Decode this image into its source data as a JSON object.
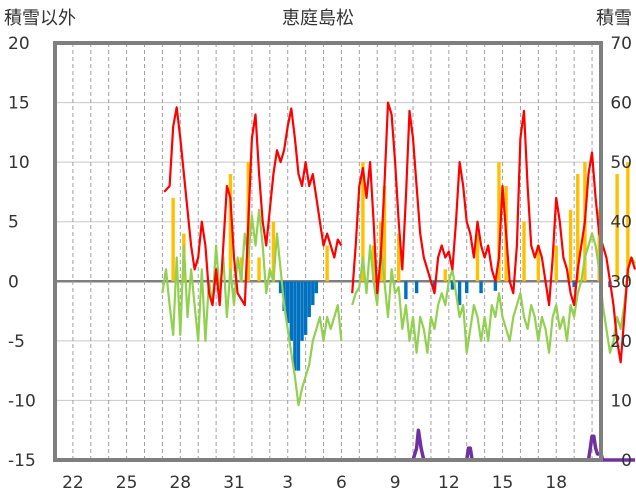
{
  "chart_data": {
    "type": "line",
    "title": "恵庭島松",
    "left_axis_label": "積雪以外",
    "right_axis_label": "積雪",
    "ylim_left": [
      -15,
      20
    ],
    "ylim_right": [
      0,
      70
    ],
    "yticks_left": [
      "20",
      "15",
      "10",
      "5",
      "0",
      "-5",
      "-10",
      "-15"
    ],
    "yticks_right": [
      "70",
      "60",
      "50",
      "40",
      "30",
      "20",
      "10",
      "0"
    ],
    "x_tick_labels": [
      "22",
      "25",
      "28",
      "31",
      "3",
      "6",
      "9",
      "12",
      "15",
      "18"
    ],
    "x_range_days": [
      0,
      30.5
    ],
    "grid": {
      "vertical_dashed": true,
      "horizontal_solid": true
    },
    "colors": {
      "temperature": "#ff0000",
      "precipitation": "#ffc000",
      "snow_change": "#0070c0",
      "other": "#92d050",
      "snow_depth": "#7030a0",
      "frame": "#7f7f7f",
      "grid": "#c8c8c8"
    },
    "temperature_series": [
      [
        6.1,
        7.5
      ],
      [
        6.4,
        8.0
      ],
      [
        6.6,
        13.0
      ],
      [
        6.8,
        14.6
      ],
      [
        7.0,
        12.0
      ],
      [
        7.2,
        9.0
      ],
      [
        7.4,
        6.0
      ],
      [
        7.6,
        3.0
      ],
      [
        7.8,
        1.0
      ],
      [
        8.0,
        2.0
      ],
      [
        8.2,
        5.0
      ],
      [
        8.4,
        3.0
      ],
      [
        8.6,
        -1.0
      ],
      [
        8.8,
        -2.0
      ],
      [
        9.0,
        1.0
      ],
      [
        9.2,
        -2.0
      ],
      [
        9.4,
        3.0
      ],
      [
        9.6,
        8.0
      ],
      [
        9.8,
        7.0
      ],
      [
        10.0,
        2.0
      ],
      [
        10.2,
        -1.0
      ],
      [
        10.6,
        -2.0
      ],
      [
        11.0,
        12.0
      ],
      [
        11.2,
        14.0
      ],
      [
        11.4,
        9.0
      ],
      [
        11.6,
        5.0
      ],
      [
        11.8,
        3.0
      ],
      [
        12.0,
        6.0
      ],
      [
        12.2,
        9.0
      ],
      [
        12.4,
        11.0
      ],
      [
        12.6,
        10.0
      ],
      [
        12.8,
        11.0
      ],
      [
        13.0,
        13.0
      ],
      [
        13.2,
        14.5
      ],
      [
        13.4,
        12.0
      ],
      [
        13.6,
        9.0
      ],
      [
        13.8,
        8.0
      ],
      [
        14.0,
        10.0
      ],
      [
        14.2,
        8.0
      ],
      [
        14.4,
        9.0
      ],
      [
        14.6,
        7.0
      ],
      [
        14.8,
        5.0
      ],
      [
        15.0,
        3.0
      ],
      [
        15.2,
        4.0
      ],
      [
        15.4,
        3.0
      ],
      [
        15.6,
        2.0
      ],
      [
        15.8,
        3.5
      ],
      [
        16.0,
        3.0
      ],
      null,
      [
        16.6,
        -1.0
      ],
      [
        16.8,
        3.0
      ],
      [
        17.0,
        8.0
      ],
      [
        17.2,
        9.5
      ],
      [
        17.4,
        7.0
      ],
      [
        17.6,
        10.0
      ],
      [
        17.8,
        5.0
      ],
      [
        18.0,
        -1.0
      ],
      [
        18.2,
        2.0
      ],
      [
        18.4,
        8.0
      ],
      [
        18.6,
        15.0
      ],
      [
        18.8,
        14.0
      ],
      [
        19.0,
        10.0
      ],
      [
        19.2,
        5.0
      ],
      [
        19.4,
        1.0
      ],
      [
        19.6,
        7.0
      ],
      [
        19.8,
        14.3
      ],
      [
        20.0,
        12.0
      ],
      [
        20.2,
        8.0
      ],
      [
        20.4,
        4.0
      ],
      [
        20.6,
        2.0
      ],
      [
        20.8,
        1.0
      ],
      [
        21.0,
        0.0
      ],
      [
        21.2,
        -1.0
      ],
      [
        21.4,
        2.0
      ],
      [
        21.6,
        3.0
      ],
      [
        21.8,
        2.0
      ],
      [
        22.0,
        2.5
      ],
      [
        22.2,
        1.0
      ],
      [
        22.4,
        5.0
      ],
      [
        22.6,
        10.0
      ],
      [
        22.8,
        8.0
      ],
      [
        23.0,
        5.0
      ],
      [
        23.2,
        4.0
      ],
      [
        23.4,
        2.0
      ],
      [
        23.6,
        5.0
      ],
      [
        23.8,
        3.0
      ],
      [
        24.0,
        2.0
      ],
      [
        24.2,
        3.0
      ],
      [
        24.4,
        1.0
      ],
      [
        24.6,
        0.0
      ],
      [
        24.8,
        2.0
      ],
      [
        25.0,
        8.0
      ],
      [
        25.2,
        4.0
      ],
      [
        25.4,
        0.0
      ],
      [
        25.6,
        -1.0
      ],
      [
        25.8,
        3.0
      ],
      [
        26.0,
        12.0
      ],
      [
        26.2,
        14.3
      ],
      [
        26.4,
        8.0
      ],
      [
        26.6,
        3.0
      ],
      [
        26.8,
        2.0
      ],
      [
        27.0,
        3.0
      ],
      [
        27.2,
        2.0
      ],
      [
        27.4,
        0.0
      ],
      [
        27.6,
        -2.0
      ],
      [
        27.8,
        2.0
      ],
      [
        28.0,
        7.0
      ],
      [
        28.2,
        5.0
      ],
      [
        28.4,
        2.0
      ],
      [
        28.6,
        1.0
      ],
      [
        28.8,
        -1.0
      ],
      [
        29.0,
        -2.0
      ],
      [
        29.2,
        1.0
      ],
      [
        29.4,
        3.0
      ],
      [
        29.6,
        5.0
      ],
      [
        29.8,
        9.0
      ],
      [
        30.0,
        10.8
      ],
      [
        30.2,
        7.0
      ],
      [
        30.4,
        4.0
      ],
      [
        30.6,
        3.0
      ],
      [
        30.8,
        2.0
      ],
      [
        31.0,
        0.0
      ],
      [
        31.2,
        -2.0
      ],
      [
        31.4,
        -5.0
      ],
      [
        31.6,
        -6.8
      ],
      [
        31.8,
        -3.0
      ],
      [
        32.0,
        1.0
      ],
      [
        32.2,
        2.0
      ],
      [
        32.4,
        1.0
      ]
    ],
    "other_series": [
      [
        6.0,
        -1.0
      ],
      [
        6.2,
        1.0
      ],
      [
        6.4,
        -2.0
      ],
      [
        6.6,
        -4.5
      ],
      [
        6.8,
        2.0
      ],
      [
        7.0,
        -4.5
      ],
      [
        7.2,
        3.0
      ],
      [
        7.4,
        -3.0
      ],
      [
        7.6,
        1.0
      ],
      [
        7.8,
        -2.0
      ],
      [
        8.0,
        -5.0
      ],
      [
        8.2,
        1.0
      ],
      [
        8.4,
        -5.0
      ],
      [
        8.6,
        0.0
      ],
      [
        8.8,
        -2.0
      ],
      [
        9.0,
        3.0
      ],
      [
        9.2,
        -1.0
      ],
      [
        9.4,
        2.0
      ],
      [
        9.6,
        -3.0
      ],
      [
        9.8,
        1.0
      ],
      [
        10.0,
        -2.0
      ],
      [
        10.2,
        2.0
      ],
      [
        10.4,
        0.0
      ],
      [
        10.6,
        4.0
      ],
      [
        10.8,
        2.0
      ],
      [
        11.0,
        5.5
      ],
      [
        11.2,
        3.0
      ],
      [
        11.4,
        6.0
      ],
      [
        11.6,
        3.0
      ],
      [
        11.8,
        -1.0
      ],
      [
        12.0,
        1.0
      ],
      [
        12.2,
        0.0
      ],
      [
        12.4,
        4.0
      ],
      [
        12.6,
        1.0
      ],
      [
        12.8,
        -2.0
      ],
      [
        13.0,
        -4.0
      ],
      [
        13.2,
        -6.0
      ],
      [
        13.4,
        -8.0
      ],
      [
        13.6,
        -10.4
      ],
      [
        13.8,
        -9.0
      ],
      [
        14.0,
        -8.0
      ],
      [
        14.2,
        -7.0
      ],
      [
        14.4,
        -5.0
      ],
      [
        14.6,
        -4.0
      ],
      [
        14.8,
        -3.0
      ],
      [
        15.0,
        -5.0
      ],
      [
        15.2,
        -3.0
      ],
      [
        15.4,
        -4.0
      ],
      [
        15.6,
        -3.0
      ],
      [
        15.8,
        -2.0
      ],
      [
        16.0,
        -5.0
      ],
      null,
      [
        16.6,
        -2.0
      ],
      [
        16.8,
        -1.0
      ],
      [
        17.0,
        -0.5
      ],
      [
        17.2,
        2.0
      ],
      [
        17.4,
        -1.0
      ],
      [
        17.6,
        3.0
      ],
      [
        17.8,
        0.0
      ],
      [
        18.0,
        -2.0
      ],
      [
        18.2,
        3.0
      ],
      [
        18.4,
        0.0
      ],
      [
        18.6,
        -3.0
      ],
      [
        18.8,
        1.0
      ],
      [
        19.0,
        -1.0
      ],
      [
        19.2,
        -0.5
      ],
      [
        19.4,
        -4.0
      ],
      [
        19.6,
        -2.0
      ],
      [
        19.8,
        -5.0
      ],
      [
        20.0,
        -3.0
      ],
      [
        20.2,
        -6.0
      ],
      [
        20.4,
        -3.0
      ],
      [
        20.6,
        -4.0
      ],
      [
        20.8,
        -6.0
      ],
      [
        21.0,
        -3.0
      ],
      [
        21.2,
        -4.0
      ],
      [
        21.4,
        -2.0
      ],
      [
        21.6,
        -1.0
      ],
      [
        21.8,
        -2.0
      ],
      [
        22.0,
        0.0
      ],
      [
        22.2,
        1.0
      ],
      [
        22.4,
        -1.0
      ],
      [
        22.6,
        -3.0
      ],
      [
        22.8,
        -2.0
      ],
      [
        23.0,
        -6.0
      ],
      [
        23.2,
        -4.0
      ],
      [
        23.4,
        -2.0
      ],
      [
        23.6,
        -3.0
      ],
      [
        23.8,
        -5.0
      ],
      [
        24.0,
        -3.0
      ],
      [
        24.2,
        -5.0
      ],
      [
        24.4,
        -2.0
      ],
      [
        24.6,
        -3.0
      ],
      [
        24.8,
        -1.0
      ],
      [
        25.0,
        -3.0
      ],
      [
        25.2,
        -4.0
      ],
      [
        25.4,
        -5.0
      ],
      [
        25.6,
        -3.0
      ],
      [
        25.8,
        -2.0
      ],
      [
        26.0,
        -1.0
      ],
      [
        26.2,
        -3.0
      ],
      [
        26.4,
        -4.0
      ],
      [
        26.6,
        -2.0
      ],
      [
        26.8,
        -3.0
      ],
      [
        27.0,
        -5.0
      ],
      [
        27.2,
        -3.0
      ],
      [
        27.4,
        -4.0
      ],
      [
        27.6,
        -6.0
      ],
      [
        27.8,
        -3.0
      ],
      [
        28.0,
        -2.0
      ],
      [
        28.2,
        -4.0
      ],
      [
        28.4,
        -3.0
      ],
      [
        28.6,
        -5.0
      ],
      [
        28.8,
        -2.0
      ],
      [
        29.0,
        -3.0
      ],
      [
        29.2,
        -1.0
      ],
      [
        29.4,
        0.0
      ],
      [
        29.6,
        2.0
      ],
      [
        29.8,
        3.0
      ],
      [
        30.0,
        4.0
      ],
      [
        30.2,
        3.0
      ],
      [
        30.4,
        1.0
      ],
      [
        30.6,
        -2.0
      ],
      [
        30.8,
        -4.0
      ],
      [
        31.0,
        -6.0
      ],
      [
        31.2,
        -5.0
      ],
      [
        31.4,
        -3.0
      ],
      [
        31.6,
        -4.0
      ],
      [
        31.8,
        -2.0
      ],
      [
        32.0,
        1.0
      ],
      [
        32.2,
        2.0
      ],
      [
        32.4,
        1.5
      ]
    ],
    "precipitation_bars": [
      [
        6.6,
        7.0
      ],
      [
        7.2,
        4.0
      ],
      [
        9.8,
        9.0
      ],
      [
        10.4,
        2.0
      ],
      [
        10.8,
        10.0
      ],
      [
        11.4,
        2.0
      ],
      [
        12.2,
        5.0
      ],
      [
        15.2,
        3.0
      ],
      [
        17.2,
        10.0
      ],
      [
        17.8,
        3.0
      ],
      [
        18.2,
        5.0
      ],
      [
        18.4,
        8.0
      ],
      [
        19.2,
        4.0
      ],
      [
        21.8,
        1.0
      ],
      [
        23.6,
        4.0
      ],
      [
        24.8,
        10.0
      ],
      [
        25.2,
        8.0
      ],
      [
        26.2,
        5.0
      ],
      [
        27.0,
        3.0
      ],
      [
        28.0,
        3.0
      ],
      [
        28.8,
        6.0
      ],
      [
        29.2,
        9.0
      ],
      [
        29.6,
        10.0
      ],
      [
        30.4,
        6.0
      ],
      [
        31.4,
        9.0
      ],
      [
        32.0,
        10.0
      ]
    ],
    "snow_change_bars": [
      [
        12.6,
        -1.0
      ],
      [
        12.8,
        -2.5
      ],
      [
        13.0,
        -3.5
      ],
      [
        13.2,
        -5.0
      ],
      [
        13.4,
        -7.5
      ],
      [
        13.6,
        -7.5
      ],
      [
        13.8,
        -5.0
      ],
      [
        14.0,
        -4.5
      ],
      [
        14.2,
        -3.0
      ],
      [
        14.4,
        -2.0
      ],
      [
        14.6,
        -1.0
      ],
      [
        19.6,
        -1.5
      ],
      [
        20.2,
        -1.0
      ],
      [
        21.2,
        -0.7
      ],
      [
        22.2,
        -0.7
      ],
      [
        22.6,
        -2.0
      ],
      [
        23.0,
        -1.0
      ],
      [
        23.8,
        -1.0
      ],
      [
        24.6,
        -0.8
      ],
      [
        29.0,
        -0.5
      ],
      [
        31.0,
        -0.5
      ]
    ],
    "snow_depth_series": [
      [
        7.0,
        0
      ],
      [
        20.0,
        0
      ],
      [
        20.2,
        2
      ],
      [
        20.3,
        5
      ],
      [
        20.45,
        2
      ],
      [
        20.6,
        0
      ],
      [
        23.0,
        0
      ],
      [
        23.1,
        2
      ],
      [
        23.2,
        2
      ],
      [
        23.3,
        0
      ],
      [
        29.8,
        0
      ],
      [
        29.9,
        2
      ],
      [
        30.0,
        4
      ],
      [
        30.1,
        4
      ],
      [
        30.2,
        2
      ],
      [
        30.3,
        1
      ],
      [
        30.5,
        1
      ],
      [
        30.6,
        0
      ],
      [
        32.4,
        0
      ]
    ]
  }
}
